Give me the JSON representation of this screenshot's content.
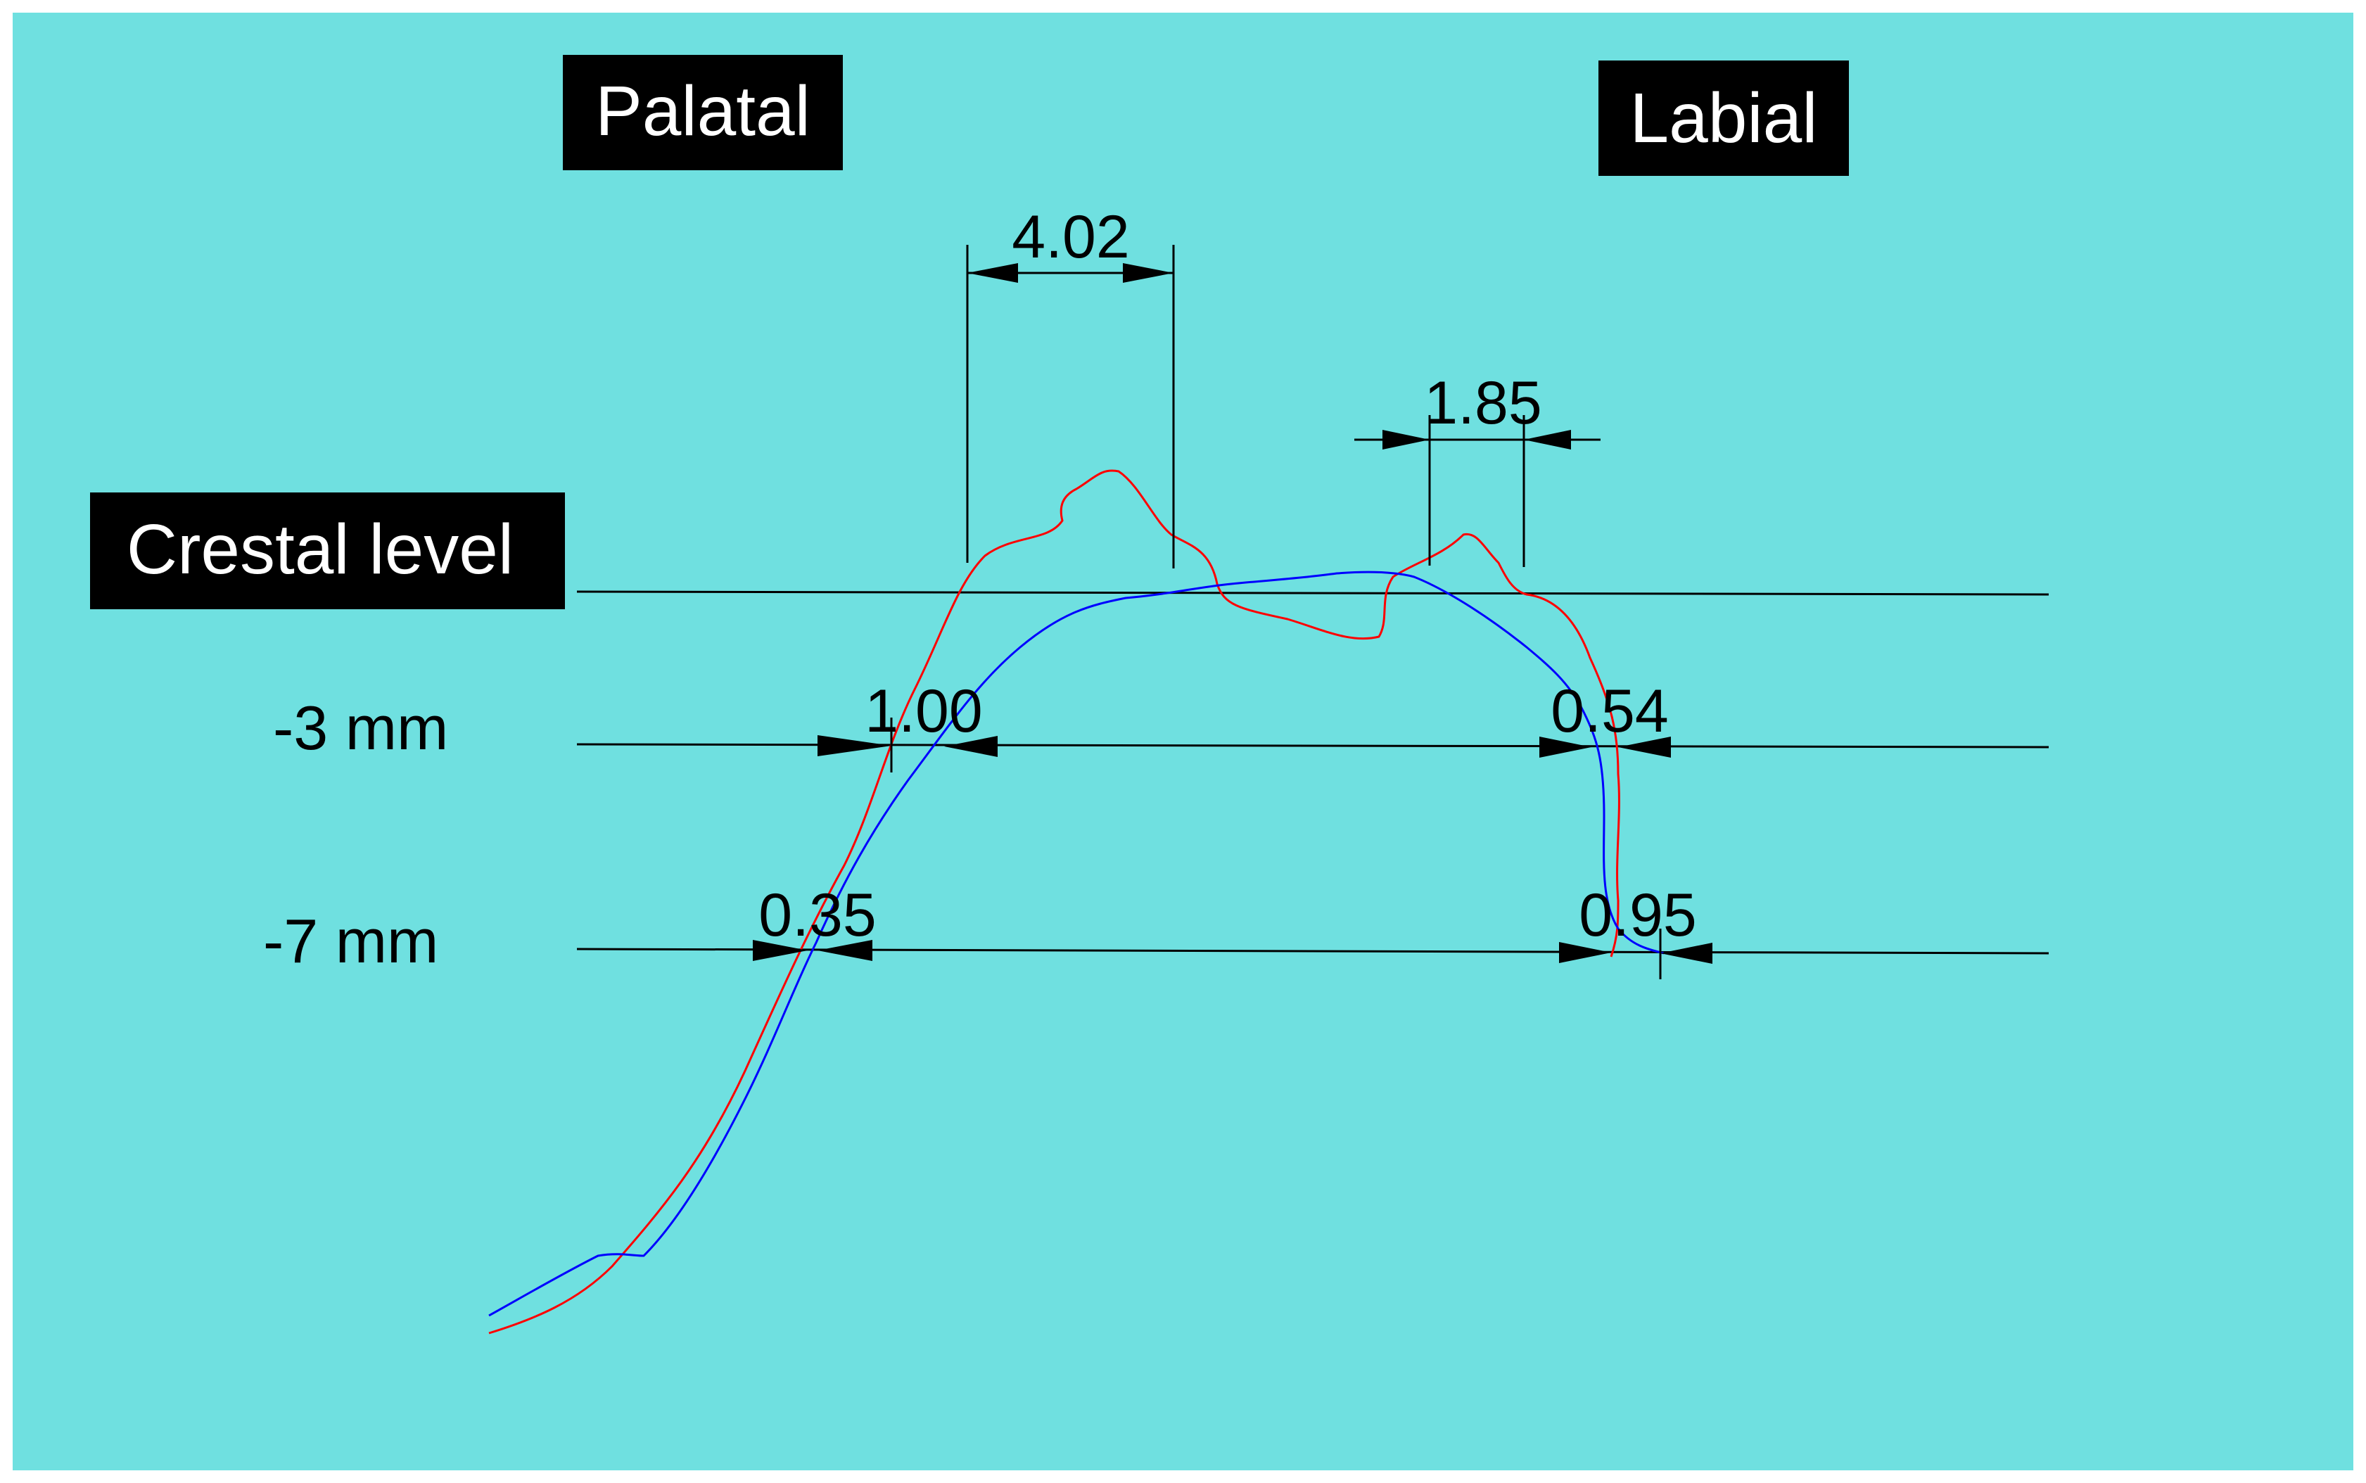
{
  "labels": {
    "palatal": "Palatal",
    "labial": "Labial",
    "crestal_level": "Crestal level",
    "minus3": "-3 mm",
    "minus7": "-7 mm"
  },
  "measurements": {
    "top_width": "4.02",
    "labial_crest": "1.85",
    "palatal_minus3": "1.00",
    "labial_minus3": "0.54",
    "palatal_minus7": "0.35",
    "labial_minus7": "0.95"
  },
  "colors": {
    "background": "#6fe0e0",
    "outer_border": "#ffffff",
    "label_box": "#000000",
    "profile_red": "#ff0000",
    "profile_blue": "#0000ff",
    "guide_line": "#000000"
  }
}
